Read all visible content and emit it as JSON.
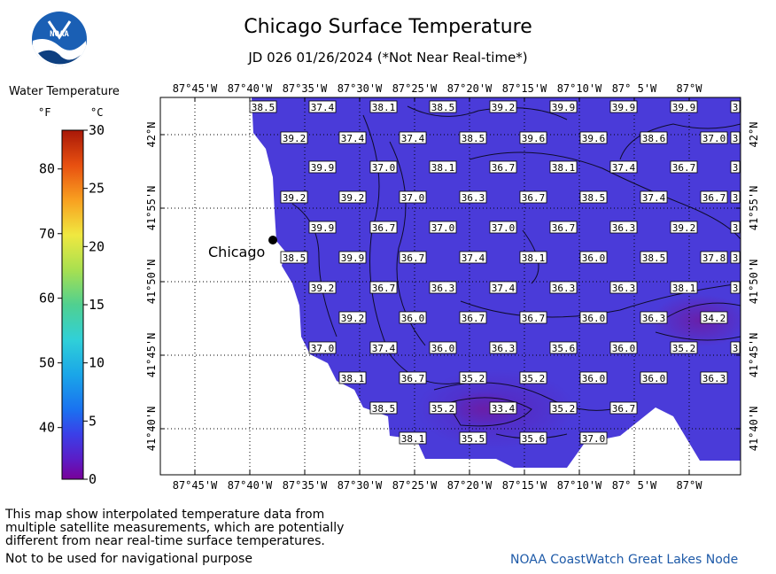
{
  "header": {
    "title": "Chicago Surface Temperature",
    "subtitle": "JD 026 01/26/2024 (*Not Near Real-time*)"
  },
  "logo": {
    "text": "NOAA",
    "color": "#1a5fb4"
  },
  "legend": {
    "title": "Water Temperature",
    "unit_f": "°F",
    "unit_c": "°C",
    "f_ticks": [
      {
        "label": "80",
        "c": 26.67
      },
      {
        "label": "70",
        "c": 21.11
      },
      {
        "label": "60",
        "c": 15.56
      },
      {
        "label": "50",
        "c": 10.0
      },
      {
        "label": "40",
        "c": 4.44
      }
    ],
    "c_ticks": [
      {
        "label": "30",
        "c": 30
      },
      {
        "label": "25",
        "c": 25
      },
      {
        "label": "20",
        "c": 20
      },
      {
        "label": "15",
        "c": 15
      },
      {
        "label": "10",
        "c": 10
      },
      {
        "label": "5",
        "c": 5
      },
      {
        "label": "0",
        "c": 0
      }
    ]
  },
  "map": {
    "lon_labels": [
      "87°45'W",
      "87°40'W",
      "87°35'W",
      "87°30'W",
      "87°25'W",
      "87°20'W",
      "87°15'W",
      "87°10'W",
      "87° 5'W",
      "87°W"
    ],
    "lat_labels": [
      "42°N",
      "41°55'N",
      "41°50'N",
      "41°45'N",
      "41°40'N"
    ],
    "city": "Chicago",
    "land_color": "#ffffff",
    "water_color": "#4a3ad8",
    "cold_color": "#6a26b4"
  },
  "temperature_grid": {
    "unit": "°F",
    "rows": [
      [
        "38.5",
        "37.4",
        "38.1",
        "38.5",
        "39.2",
        "39.9",
        "39.9",
        "39.9",
        "3"
      ],
      [
        "39.2",
        "37.4",
        "37.4",
        "38.5",
        "39.6",
        "39.6",
        "38.6",
        "37.0",
        "3"
      ],
      [
        "39.9",
        "37.0",
        "38.1",
        "36.7",
        "38.1",
        "37.4",
        "36.7",
        "3"
      ],
      [
        "39.2",
        "39.2",
        "37.0",
        "36.3",
        "36.7",
        "38.5",
        "37.4",
        "36.7",
        "3"
      ],
      [
        "39.9",
        "36.7",
        "37.0",
        "37.0",
        "36.7",
        "36.3",
        "39.2",
        "3"
      ],
      [
        "38.5",
        "39.9",
        "36.7",
        "37.4",
        "38.1",
        "36.0",
        "38.5",
        "37.8",
        "3"
      ],
      [
        "39.2",
        "36.7",
        "36.3",
        "37.4",
        "36.3",
        "36.3",
        "38.1",
        "3"
      ],
      [
        "39.2",
        "36.0",
        "36.7",
        "36.7",
        "36.0",
        "36.3",
        "34.2"
      ],
      [
        "37.0",
        "37.4",
        "36.0",
        "36.3",
        "35.6",
        "36.0",
        "35.2",
        "3"
      ],
      [
        "38.1",
        "36.7",
        "35.2",
        "35.2",
        "36.0",
        "36.0",
        "36.3"
      ],
      [
        "38.5",
        "35.2",
        "33.4",
        "35.2",
        "36.7"
      ],
      [
        "38.1",
        "35.5",
        "35.6",
        "37.0"
      ]
    ]
  },
  "footer": {
    "disclaimer_lines": [
      "This map show interpolated temperature data from",
      "multiple satellite measurements, which are potentially",
      "different from near real-time surface temperatures."
    ],
    "nav_warning": "Not to be used for navigational purpose",
    "credit": "NOAA CoastWatch Great Lakes Node"
  }
}
